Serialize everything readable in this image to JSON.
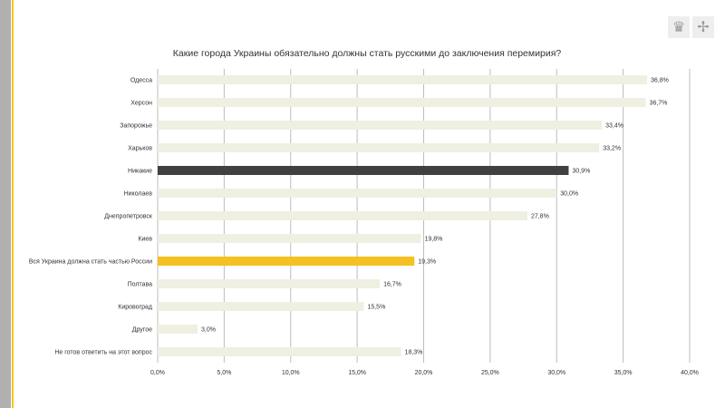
{
  "chart_data": {
    "type": "bar",
    "orientation": "horizontal",
    "title": "Какие города Украины обязательно должны стать русскими до заключения перемирия?",
    "categories": [
      "Одесса",
      "Херсон",
      "Запорожье",
      "Харьков",
      "Никакие",
      "Николаев",
      "Днепропетровск",
      "Киев",
      "Вся Украина должна стать частью России",
      "Полтава",
      "Кировоград",
      "Другое",
      "Не готов ответить на этот вопрос"
    ],
    "values": [
      36.8,
      36.7,
      33.4,
      33.2,
      30.9,
      30.0,
      27.8,
      19.8,
      19.3,
      16.7,
      15.5,
      3.0,
      18.3
    ],
    "value_labels": [
      "36,8%",
      "36,7%",
      "33,4%",
      "33,2%",
      "30,9%",
      "30,0%",
      "27,8%",
      "19,8%",
      "19,3%",
      "16,7%",
      "15,5%",
      "3,0%",
      "18,3%"
    ],
    "bar_colors": [
      "#efefe2",
      "#efefe2",
      "#efefe2",
      "#efefe2",
      "#404040",
      "#efefe2",
      "#efefe2",
      "#efefe2",
      "#f5c022",
      "#efefe2",
      "#efefe2",
      "#efefe2",
      "#efefe2"
    ],
    "xlim": [
      0,
      40
    ],
    "xticks": [
      0,
      5,
      10,
      15,
      20,
      25,
      30,
      35,
      40
    ],
    "xtick_labels": [
      "0,0%",
      "5,0%",
      "10,0%",
      "15,0%",
      "20,0%",
      "25,0%",
      "30,0%",
      "35,0%",
      "40,0%"
    ],
    "grid": true,
    "xlabel": "",
    "ylabel": ""
  }
}
